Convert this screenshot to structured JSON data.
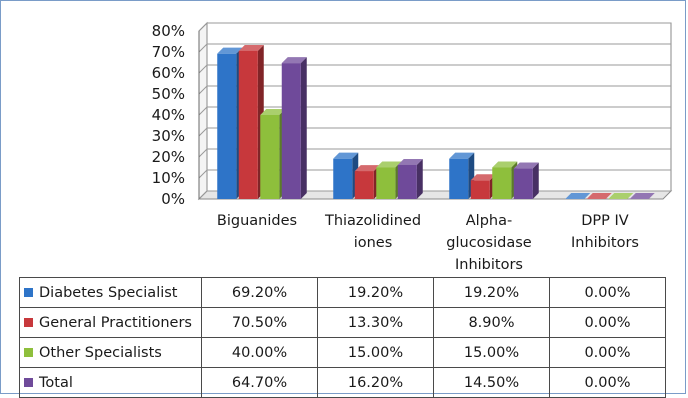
{
  "chart_data": {
    "type": "bar",
    "y_ticks": [
      "0%",
      "10%",
      "20%",
      "30%",
      "40%",
      "50%",
      "60%",
      "70%",
      "80%"
    ],
    "ylim": [
      0,
      80
    ],
    "categories": [
      [
        "Biguanides"
      ],
      [
        "Thiazolidined",
        "iones"
      ],
      [
        "Alpha-",
        "glucosidase",
        "Inhibitors"
      ],
      [
        "DPP IV",
        "Inhibitors"
      ]
    ],
    "series": [
      {
        "name": "Diabetes Specialist",
        "color": "#2e74c8",
        "values": [
          69.2,
          19.2,
          19.2,
          0.0
        ],
        "labels": [
          "69.20%",
          "19.20%",
          "19.20%",
          "0.00%"
        ]
      },
      {
        "name": "General Practitioners",
        "color": "#c7383c",
        "values": [
          70.5,
          13.3,
          8.9,
          0.0
        ],
        "labels": [
          "70.50%",
          "13.30%",
          "8.90%",
          "0.00%"
        ]
      },
      {
        "name": "Other Specialists",
        "color": "#8ebf3c",
        "values": [
          40.0,
          15.0,
          15.0,
          0.0
        ],
        "labels": [
          "40.00%",
          "15.00%",
          "15.00%",
          "0.00%"
        ]
      },
      {
        "name": "Total",
        "color": "#6f4a9a",
        "values": [
          64.7,
          16.2,
          14.5,
          0.0
        ],
        "labels": [
          "64.70%",
          "16.20%",
          "14.50%",
          "0.00%"
        ]
      }
    ],
    "grid": true,
    "legend": "data-table-below"
  }
}
